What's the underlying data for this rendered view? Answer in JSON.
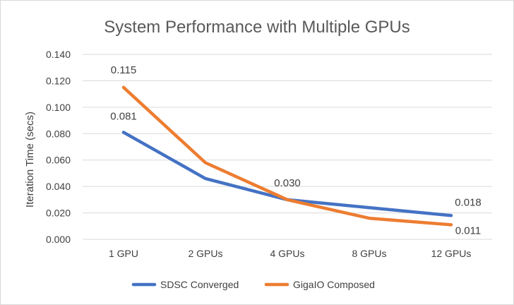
{
  "chart_data": {
    "type": "line",
    "title": "System Performance with Multiple GPUs",
    "xlabel": "",
    "ylabel": "Iteration Time (secs)",
    "categories": [
      "1 GPU",
      "2 GPUs",
      "4 GPUs",
      "8 GPUs",
      "12 GPUs"
    ],
    "ylim": [
      0,
      0.14
    ],
    "yticks": [
      "0.000",
      "0.020",
      "0.040",
      "0.060",
      "0.080",
      "0.100",
      "0.120",
      "0.140"
    ],
    "grid": true,
    "legend_position": "bottom",
    "series": [
      {
        "name": "SDSC Converged",
        "color": "#4472C4",
        "values": [
          0.081,
          0.046,
          0.03,
          0.024,
          0.018
        ],
        "data_labels": [
          "0.081",
          "",
          "",
          "",
          "0.018"
        ]
      },
      {
        "name": "GigaIO Composed",
        "color": "#ED7D31",
        "values": [
          0.115,
          0.058,
          0.03,
          0.016,
          0.011
        ],
        "data_labels": [
          "0.115",
          "",
          "0.030",
          "",
          "0.011"
        ]
      }
    ]
  }
}
